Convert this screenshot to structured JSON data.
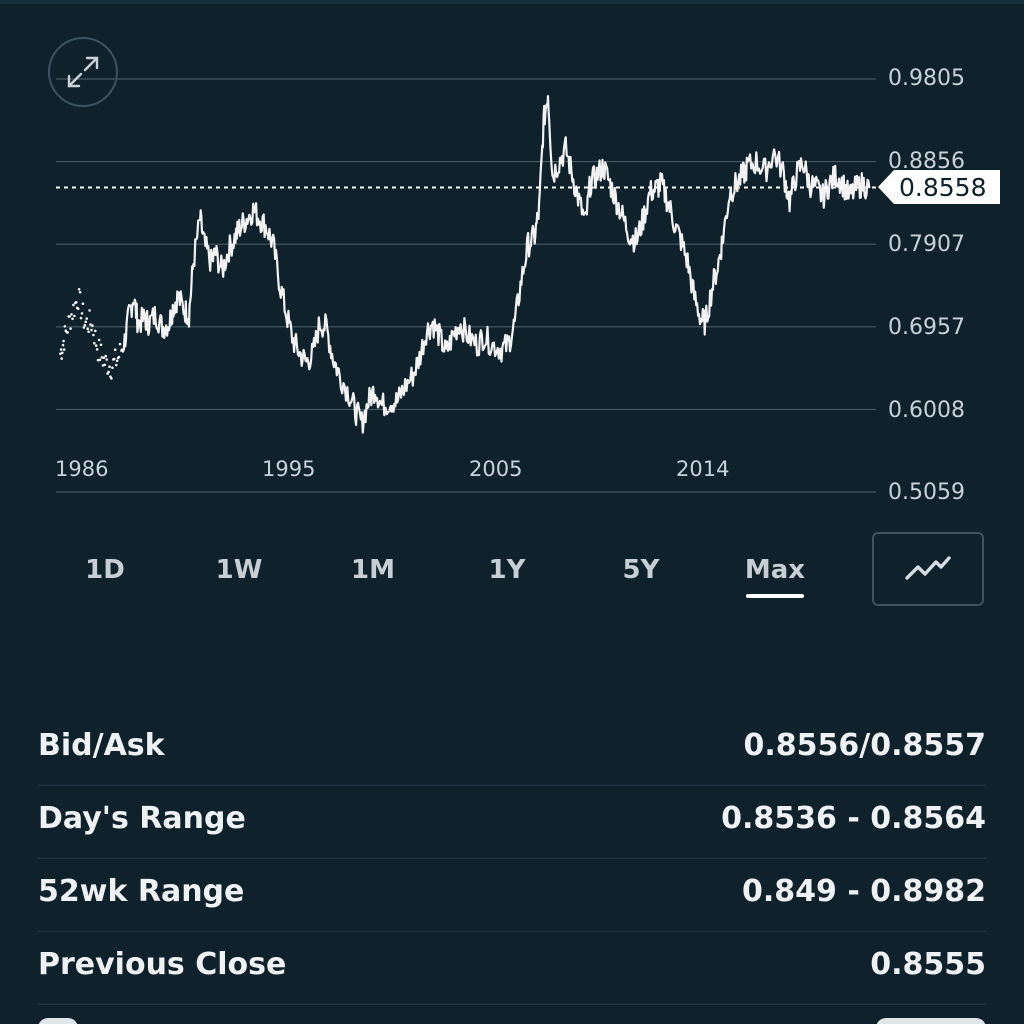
{
  "chart": {
    "y_ticks": [
      "0.9805",
      "0.8856",
      "0.7907",
      "0.6957",
      "0.6008",
      "0.5059"
    ],
    "current_price_label": "0.8558",
    "x_ticks": [
      "1986",
      "1995",
      "2005",
      "2014"
    ]
  },
  "chart_data": {
    "type": "line",
    "title": "",
    "xlabel": "",
    "ylabel": "",
    "ylim": [
      0.5059,
      0.9805
    ],
    "xlim": [
      1985.8,
      2022.8
    ],
    "x_ticks": [
      1986,
      1995,
      2005,
      2014
    ],
    "y_ticks": [
      0.9805,
      0.8856,
      0.7907,
      0.6957,
      0.6008,
      0.5059
    ],
    "current_value": 0.8558,
    "grid": true,
    "series": [
      {
        "values": [
          [
            1986.0,
            0.665
          ],
          [
            1986.2,
            0.685
          ],
          [
            1986.5,
            0.71
          ],
          [
            1986.8,
            0.73
          ],
          [
            1987.1,
            0.7
          ],
          [
            1987.4,
            0.7
          ],
          [
            1987.7,
            0.67
          ],
          [
            1988.0,
            0.655
          ],
          [
            1988.3,
            0.65
          ],
          [
            1988.6,
            0.66
          ],
          [
            1988.9,
            0.68
          ],
          [
            1989.1,
            0.71
          ],
          [
            1989.3,
            0.73
          ],
          [
            1989.5,
            0.7
          ],
          [
            1989.8,
            0.705
          ],
          [
            1990.0,
            0.7
          ],
          [
            1990.3,
            0.71
          ],
          [
            1990.6,
            0.695
          ],
          [
            1990.9,
            0.7
          ],
          [
            1991.1,
            0.72
          ],
          [
            1991.3,
            0.73
          ],
          [
            1991.6,
            0.715
          ],
          [
            1991.8,
            0.71
          ],
          [
            1992.0,
            0.77
          ],
          [
            1992.3,
            0.82
          ],
          [
            1992.5,
            0.79
          ],
          [
            1992.8,
            0.77
          ],
          [
            1993.0,
            0.78
          ],
          [
            1993.3,
            0.76
          ],
          [
            1993.6,
            0.785
          ],
          [
            1993.9,
            0.8
          ],
          [
            1994.1,
            0.81
          ],
          [
            1994.4,
            0.82
          ],
          [
            1994.7,
            0.83
          ],
          [
            1995.0,
            0.82
          ],
          [
            1995.3,
            0.81
          ],
          [
            1995.6,
            0.79
          ],
          [
            1995.9,
            0.745
          ],
          [
            1996.2,
            0.71
          ],
          [
            1996.5,
            0.68
          ],
          [
            1996.8,
            0.665
          ],
          [
            1997.1,
            0.655
          ],
          [
            1997.4,
            0.665
          ],
          [
            1997.7,
            0.7
          ],
          [
            1998.0,
            0.695
          ],
          [
            1998.3,
            0.66
          ],
          [
            1998.6,
            0.64
          ],
          [
            1999.0,
            0.62
          ],
          [
            1999.3,
            0.6
          ],
          [
            1999.6,
            0.585
          ],
          [
            1999.9,
            0.61
          ],
          [
            2000.2,
            0.625
          ],
          [
            2000.5,
            0.605
          ],
          [
            2000.9,
            0.61
          ],
          [
            2001.2,
            0.61
          ],
          [
            2001.5,
            0.625
          ],
          [
            2001.9,
            0.64
          ],
          [
            2002.2,
            0.66
          ],
          [
            2002.5,
            0.69
          ],
          [
            2002.8,
            0.7
          ],
          [
            2003.1,
            0.685
          ],
          [
            2003.4,
            0.665
          ],
          [
            2003.7,
            0.685
          ],
          [
            2004.0,
            0.7
          ],
          [
            2004.4,
            0.685
          ],
          [
            2004.8,
            0.675
          ],
          [
            2005.1,
            0.685
          ],
          [
            2005.5,
            0.675
          ],
          [
            2005.9,
            0.67
          ],
          [
            2006.2,
            0.675
          ],
          [
            2006.5,
            0.7
          ],
          [
            2006.8,
            0.75
          ],
          [
            2007.1,
            0.79
          ],
          [
            2007.4,
            0.8
          ],
          [
            2007.6,
            0.83
          ],
          [
            2007.8,
            0.93
          ],
          [
            2008.0,
            0.965
          ],
          [
            2008.2,
            0.87
          ],
          [
            2008.5,
            0.885
          ],
          [
            2008.8,
            0.9
          ],
          [
            2009.1,
            0.87
          ],
          [
            2009.4,
            0.84
          ],
          [
            2009.7,
            0.815
          ],
          [
            2009.9,
            0.86
          ],
          [
            2010.2,
            0.87
          ],
          [
            2010.5,
            0.88
          ],
          [
            2010.8,
            0.86
          ],
          [
            2011.1,
            0.84
          ],
          [
            2011.4,
            0.82
          ],
          [
            2011.7,
            0.8
          ],
          [
            2012.0,
            0.795
          ],
          [
            2012.3,
            0.82
          ],
          [
            2012.6,
            0.85
          ],
          [
            2012.9,
            0.855
          ],
          [
            2013.1,
            0.86
          ],
          [
            2013.4,
            0.84
          ],
          [
            2013.7,
            0.815
          ],
          [
            2014.0,
            0.795
          ],
          [
            2014.3,
            0.77
          ],
          [
            2014.6,
            0.73
          ],
          [
            2014.9,
            0.705
          ],
          [
            2015.1,
            0.7
          ],
          [
            2015.4,
            0.74
          ],
          [
            2015.7,
            0.77
          ],
          [
            2015.9,
            0.8
          ],
          [
            2016.2,
            0.85
          ],
          [
            2016.5,
            0.86
          ],
          [
            2016.8,
            0.87
          ],
          [
            2017.0,
            0.88
          ],
          [
            2017.4,
            0.885
          ],
          [
            2017.8,
            0.875
          ],
          [
            2018.2,
            0.895
          ],
          [
            2018.6,
            0.875
          ],
          [
            2018.9,
            0.84
          ],
          [
            2019.2,
            0.87
          ],
          [
            2019.5,
            0.885
          ],
          [
            2019.8,
            0.86
          ],
          [
            2020.1,
            0.855
          ],
          [
            2020.4,
            0.845
          ],
          [
            2020.7,
            0.86
          ],
          [
            2021.0,
            0.87
          ],
          [
            2021.3,
            0.86
          ],
          [
            2021.6,
            0.845
          ],
          [
            2021.9,
            0.855
          ],
          [
            2022.2,
            0.86
          ],
          [
            2022.5,
            0.855
          ]
        ]
      }
    ]
  },
  "tabs": [
    {
      "label": "1D"
    },
    {
      "label": "1W"
    },
    {
      "label": "1M"
    },
    {
      "label": "1Y"
    },
    {
      "label": "5Y"
    },
    {
      "label": "Max",
      "active": true
    }
  ],
  "stats": [
    {
      "label": "Bid/Ask",
      "value": "0.8556/0.8557"
    },
    {
      "label": "Day's Range",
      "value": "0.8536 - 0.8564"
    },
    {
      "label": "52wk Range",
      "value": "0.849 - 0.8982"
    },
    {
      "label": "Previous Close",
      "value": "0.8555"
    }
  ],
  "icons": {
    "expand": "expand-arrows-icon",
    "chart_type": "line-chart-icon"
  },
  "colors": {
    "background": "#0f212b",
    "line": "#f2f2f2",
    "grid": "#4a5a63",
    "price_tag_bg": "#ffffff",
    "price_tag_text": "#0f212b"
  }
}
